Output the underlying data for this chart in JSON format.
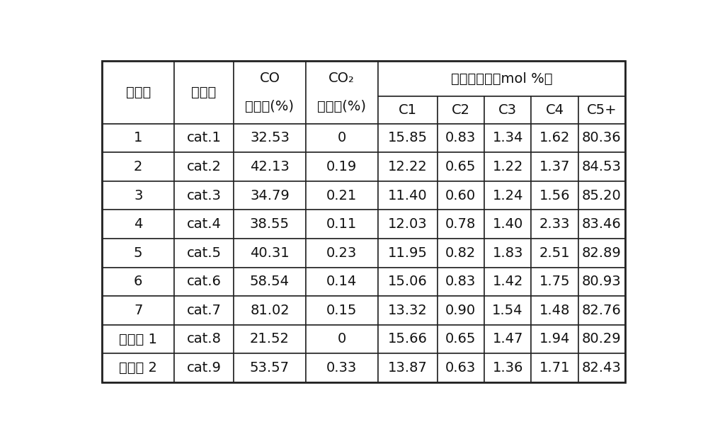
{
  "header_col0": "实施例",
  "header_col1": "催化剂",
  "header_col2_line1": "CO",
  "header_col2_line2": "转化率(%)",
  "header_col3_line1": "CO₂",
  "header_col3_line2": "选择性(%)",
  "header_merged": "烃类选择性（mol %）",
  "header_sub": [
    "C1",
    "C2",
    "C3",
    "C4",
    "C5+"
  ],
  "rows": [
    [
      "1",
      "cat.1",
      "32.53",
      "0",
      "15.85",
      "0.83",
      "1.34",
      "1.62",
      "80.36"
    ],
    [
      "2",
      "cat.2",
      "42.13",
      "0.19",
      "12.22",
      "0.65",
      "1.22",
      "1.37",
      "84.53"
    ],
    [
      "3",
      "cat.3",
      "34.79",
      "0.21",
      "11.40",
      "0.60",
      "1.24",
      "1.56",
      "85.20"
    ],
    [
      "4",
      "cat.4",
      "38.55",
      "0.11",
      "12.03",
      "0.78",
      "1.40",
      "2.33",
      "83.46"
    ],
    [
      "5",
      "cat.5",
      "40.31",
      "0.23",
      "11.95",
      "0.82",
      "1.83",
      "2.51",
      "82.89"
    ],
    [
      "6",
      "cat.6",
      "58.54",
      "0.14",
      "15.06",
      "0.83",
      "1.42",
      "1.75",
      "80.93"
    ],
    [
      "7",
      "cat.7",
      "81.02",
      "0.15",
      "13.32",
      "0.90",
      "1.54",
      "1.48",
      "82.76"
    ],
    [
      "对比例 1",
      "cat.8",
      "21.52",
      "0",
      "15.66",
      "0.65",
      "1.47",
      "1.94",
      "80.29"
    ],
    [
      "对比例 2",
      "cat.9",
      "53.57",
      "0.33",
      "13.87",
      "0.63",
      "1.36",
      "1.71",
      "82.43"
    ]
  ],
  "col_widths_rel": [
    1.15,
    0.95,
    1.15,
    1.15,
    0.95,
    0.75,
    0.75,
    0.75,
    0.75
  ],
  "bg_color": "#ffffff",
  "line_color": "#222222",
  "text_color": "#111111",
  "font_size": 14,
  "header_font_size": 14
}
